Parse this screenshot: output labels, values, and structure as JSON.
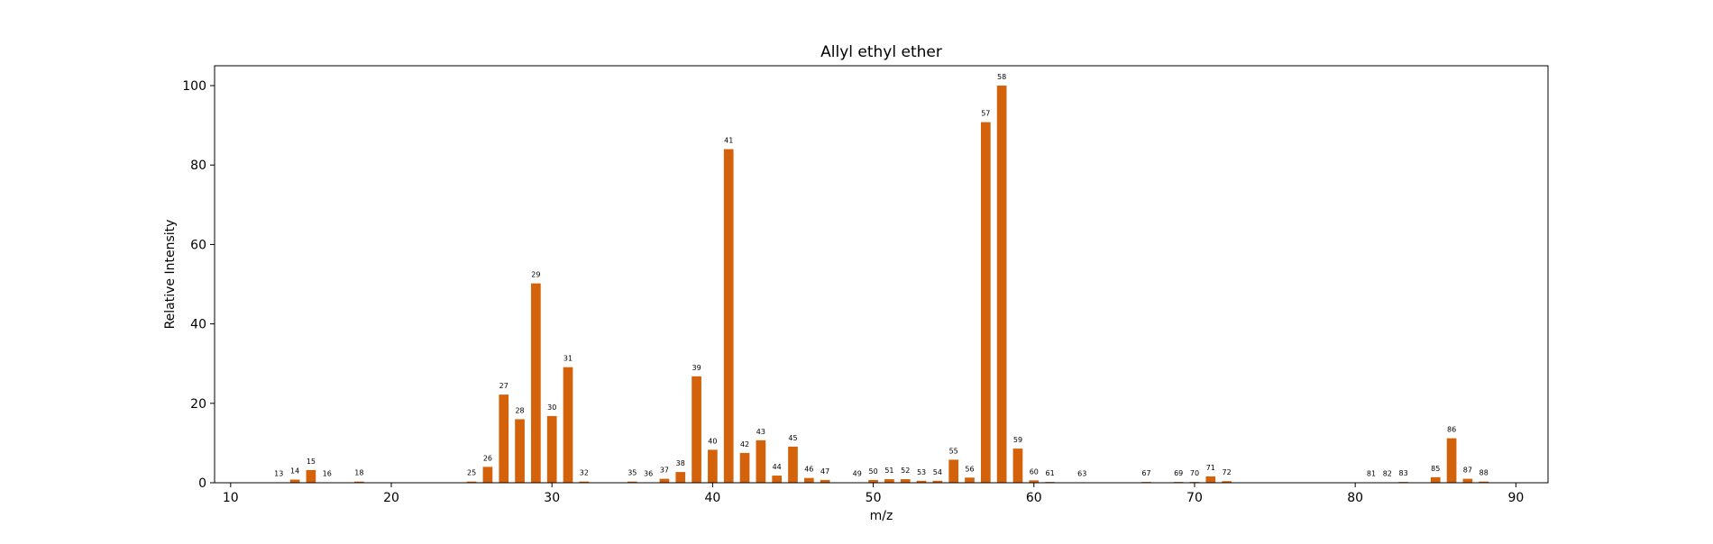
{
  "chart_data": {
    "type": "bar",
    "title": "Allyl ethyl ether",
    "xlabel": "m/z",
    "ylabel": "Relative Intensity",
    "xlim": [
      9,
      92
    ],
    "ylim": [
      0,
      105
    ],
    "xticks": [
      10,
      20,
      30,
      40,
      50,
      60,
      70,
      80,
      90
    ],
    "yticks": [
      0,
      20,
      40,
      60,
      80,
      100
    ],
    "bar_color": "#d4620a",
    "grid": false,
    "x": [
      13,
      14,
      15,
      16,
      18,
      25,
      26,
      27,
      28,
      29,
      30,
      31,
      32,
      35,
      36,
      37,
      38,
      39,
      40,
      41,
      42,
      43,
      44,
      45,
      46,
      47,
      49,
      50,
      51,
      52,
      53,
      54,
      55,
      56,
      57,
      58,
      59,
      60,
      61,
      63,
      67,
      69,
      70,
      71,
      72,
      81,
      82,
      83,
      85,
      86,
      87,
      88
    ],
    "values": [
      0.1,
      0.8,
      3.2,
      0.1,
      0.3,
      0.3,
      4.0,
      22.2,
      16.0,
      50.2,
      16.8,
      29.1,
      0.3,
      0.3,
      0.1,
      1.0,
      2.7,
      26.8,
      8.3,
      84.0,
      7.5,
      10.7,
      1.8,
      9.1,
      1.2,
      0.7,
      0.1,
      0.7,
      0.9,
      0.9,
      0.5,
      0.5,
      5.8,
      1.3,
      90.8,
      100.0,
      8.6,
      0.6,
      0.2,
      0.1,
      0.2,
      0.2,
      0.2,
      1.6,
      0.4,
      0.1,
      0.1,
      0.2,
      1.4,
      11.2,
      1.0,
      0.3
    ]
  }
}
